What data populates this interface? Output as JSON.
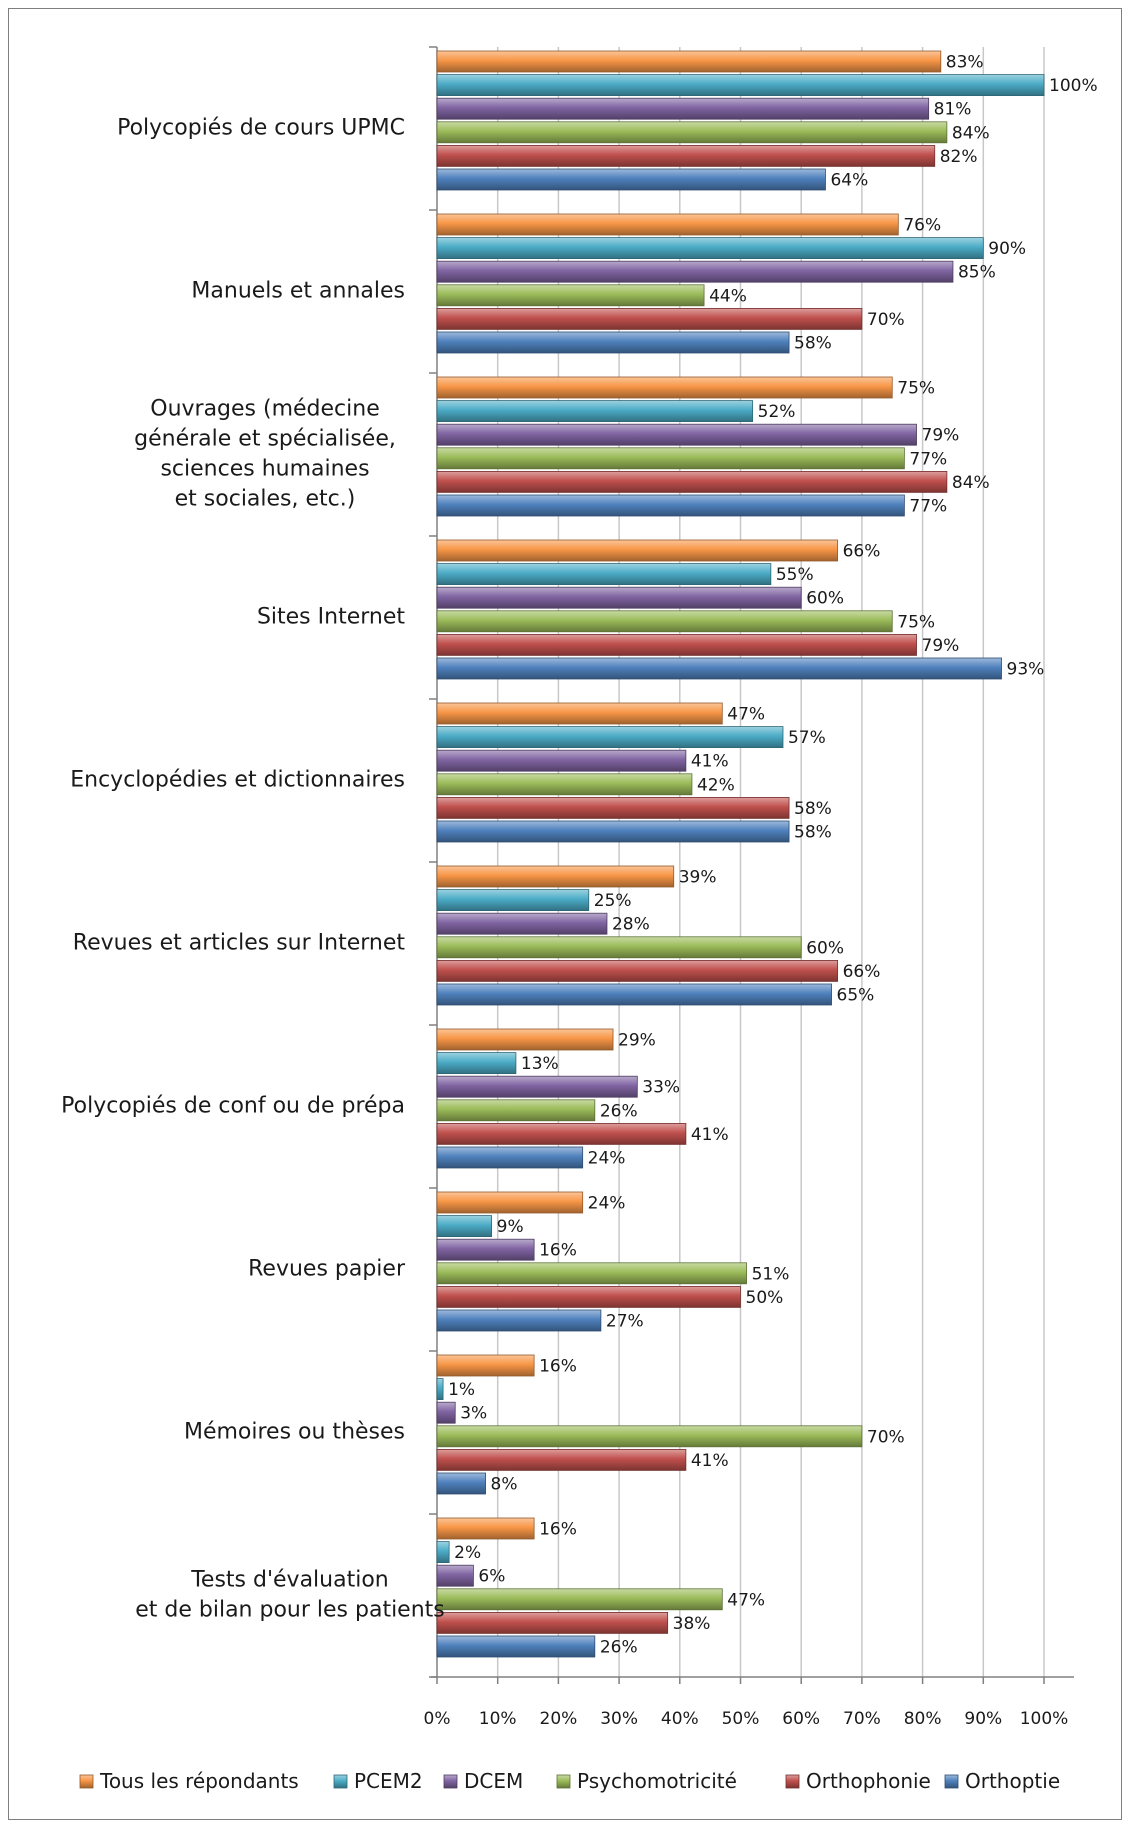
{
  "chart_data": {
    "type": "bar",
    "orientation": "horizontal",
    "title": "",
    "xlabel": "",
    "ylabel": "",
    "xlim": [
      0,
      100
    ],
    "x_ticks": [
      "0%",
      "10%",
      "20%",
      "30%",
      "40%",
      "50%",
      "60%",
      "70%",
      "80%",
      "90%",
      "100%"
    ],
    "grid": true,
    "legend_position": "bottom",
    "categories": [
      [
        "Polycopiés de cours UPMC"
      ],
      [
        "Manuels et annales"
      ],
      [
        "Ouvrages (médecine",
        "générale et spécialisée,",
        "sciences humaines",
        "et sociales, etc.)"
      ],
      [
        "Sites Internet"
      ],
      [
        "Encyclopédies et dictionnaires"
      ],
      [
        "Revues et articles sur Internet"
      ],
      [
        "Polycopiés de conf ou de prépa"
      ],
      [
        "Revues papier"
      ],
      [
        "Mémoires ou thèses"
      ],
      [
        "Tests d'évaluation",
        "et de bilan pour les patients"
      ]
    ],
    "series": [
      {
        "name": "Tous les répondants",
        "color": "#f79646",
        "values": [
          83,
          76,
          75,
          66,
          47,
          39,
          29,
          24,
          16,
          16
        ]
      },
      {
        "name": "PCEM2",
        "color": "#4bacc6",
        "values": [
          100,
          90,
          52,
          55,
          57,
          25,
          13,
          9,
          1,
          2
        ]
      },
      {
        "name": "DCEM",
        "color": "#8064a2",
        "values": [
          81,
          85,
          79,
          60,
          41,
          28,
          33,
          16,
          3,
          6
        ]
      },
      {
        "name": "Psychomotricité",
        "color": "#9bbb59",
        "values": [
          84,
          44,
          77,
          75,
          42,
          60,
          26,
          51,
          70,
          47
        ]
      },
      {
        "name": "Orthophonie",
        "color": "#c0504d",
        "values": [
          82,
          70,
          84,
          79,
          58,
          66,
          41,
          50,
          41,
          38
        ]
      },
      {
        "name": "Orthoptie",
        "color": "#4f81bd",
        "values": [
          64,
          58,
          77,
          93,
          58,
          65,
          24,
          27,
          8,
          26
        ]
      }
    ],
    "value_suffix": "%"
  }
}
